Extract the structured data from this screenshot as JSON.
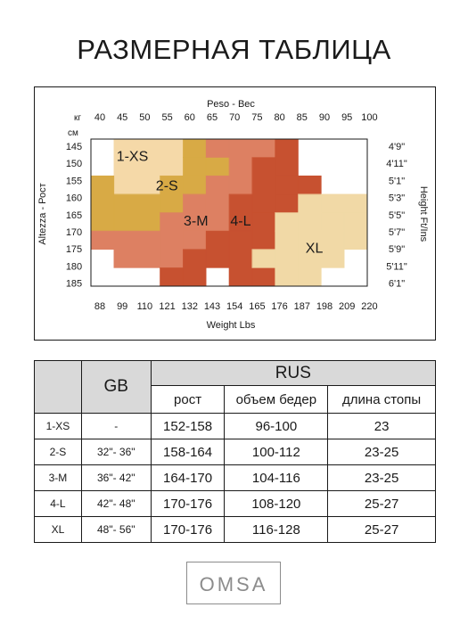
{
  "page": {
    "title": "РАЗМЕРНАЯ ТАБЛИЦА"
  },
  "chart_data": {
    "type": "heatmap",
    "top_axis_title": "Peso - Вес",
    "top_axis_unit": "кг",
    "weight_kg_ticks": [
      40,
      45,
      50,
      55,
      60,
      65,
      70,
      75,
      80,
      85,
      90,
      95,
      100
    ],
    "bottom_axis_title": "Weight Lbs",
    "weight_lbs_ticks": [
      88,
      99,
      110,
      121,
      132,
      143,
      154,
      165,
      176,
      187,
      198,
      209,
      220
    ],
    "left_axis_title": "Altezza - Рост",
    "left_axis_unit": "см",
    "height_cm_ticks": [
      145,
      150,
      155,
      160,
      165,
      170,
      175,
      180,
      185
    ],
    "right_axis_title": "Height Ft/Ins",
    "height_ftin_ticks": [
      "4'9\"",
      "4'11\"",
      "5'1\"",
      "5'3\"",
      "5'5\"",
      "5'7\"",
      "5'9\"",
      "5'11\"",
      "6'1\""
    ],
    "kg_range": [
      40,
      100
    ],
    "cm_range": [
      145,
      185
    ],
    "sizes": [
      {
        "label": "1-XS",
        "color": "#f5d9a8",
        "cells": [
          [
            45,
            55,
            145,
            160
          ],
          [
            55,
            60,
            145,
            150
          ],
          [
            55,
            60,
            150,
            155
          ]
        ]
      },
      {
        "label": "2-S",
        "color": "#d8aa45",
        "cells": [
          [
            60,
            65,
            145,
            150
          ],
          [
            60,
            65,
            150,
            155
          ],
          [
            40,
            45,
            155,
            170
          ],
          [
            45,
            55,
            160,
            170
          ],
          [
            55,
            60,
            155,
            165
          ],
          [
            60,
            65,
            155,
            160
          ],
          [
            65,
            70,
            150,
            155
          ]
        ]
      },
      {
        "label": "3-M",
        "color": "#dd8062",
        "cells": [
          [
            65,
            70,
            145,
            150
          ],
          [
            70,
            75,
            145,
            160
          ],
          [
            60,
            65,
            160,
            170
          ],
          [
            65,
            70,
            155,
            170
          ],
          [
            40,
            45,
            170,
            175
          ],
          [
            45,
            55,
            170,
            180
          ],
          [
            55,
            60,
            165,
            180
          ],
          [
            60,
            65,
            170,
            175
          ],
          [
            75,
            80,
            145,
            150
          ]
        ]
      },
      {
        "label": "4-L",
        "color": "#c75130",
        "cells": [
          [
            75,
            80,
            150,
            165
          ],
          [
            80,
            85,
            145,
            155
          ],
          [
            70,
            75,
            160,
            170
          ],
          [
            80,
            85,
            155,
            160
          ],
          [
            65,
            70,
            170,
            180
          ],
          [
            60,
            65,
            175,
            185
          ],
          [
            55,
            60,
            180,
            185
          ],
          [
            70,
            75,
            170,
            185
          ],
          [
            75,
            80,
            165,
            175
          ],
          [
            85,
            90,
            155,
            160
          ],
          [
            80,
            85,
            160,
            165
          ],
          [
            75,
            80,
            180,
            185
          ]
        ]
      },
      {
        "label": "XL",
        "color": "#f1d9a6",
        "cells": [
          [
            85,
            90,
            160,
            170
          ],
          [
            80,
            85,
            165,
            170
          ],
          [
            90,
            100,
            160,
            165
          ],
          [
            75,
            80,
            175,
            180
          ],
          [
            80,
            85,
            170,
            185
          ],
          [
            85,
            95,
            170,
            180
          ],
          [
            90,
            95,
            165,
            170
          ],
          [
            95,
            100,
            165,
            175
          ],
          [
            85,
            90,
            180,
            185
          ]
        ]
      }
    ],
    "legend": "none",
    "grid": false
  },
  "table": {
    "col_size": "",
    "col_gb": "GB",
    "group_rus": "RUS",
    "col_height": "рост",
    "col_hips": "объем бедер",
    "col_foot": "длина стопы",
    "rows": [
      {
        "size": "1-XS",
        "gb": "-",
        "height": "152-158",
        "hips": "96-100",
        "foot": "23"
      },
      {
        "size": "2-S",
        "gb": "32\"- 36\"",
        "height": "158-164",
        "hips": "100-112",
        "foot": "23-25"
      },
      {
        "size": "3-M",
        "gb": "36\"- 42\"",
        "height": "164-170",
        "hips": "104-116",
        "foot": "23-25"
      },
      {
        "size": "4-L",
        "gb": "42\"- 48\"",
        "height": "170-176",
        "hips": "108-120",
        "foot": "25-27"
      },
      {
        "size": "XL",
        "gb": "48\"- 56\"",
        "height": "170-176",
        "hips": "116-128",
        "foot": "25-27"
      }
    ]
  },
  "logo": {
    "text": "OMSA",
    "color": "#8c8c8c"
  }
}
